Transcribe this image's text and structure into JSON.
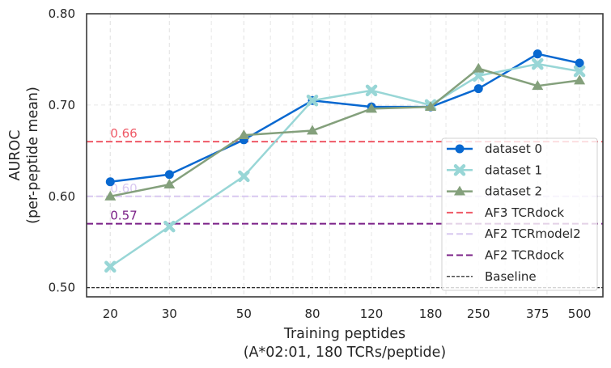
{
  "chart_data": {
    "type": "line",
    "title": "",
    "xlabel": "Training peptides",
    "xlabel_line2": "(A*02:01, 180 TCRs/peptide)",
    "ylabel": "AUROC",
    "ylabel_line2": "(per-peptide mean)",
    "xscale": "log",
    "x": [
      20,
      30,
      50,
      80,
      120,
      180,
      250,
      375,
      500
    ],
    "x_tick_labels": [
      "20",
      "30",
      "50",
      "80",
      "120",
      "180",
      "250",
      "375",
      "500"
    ],
    "xlim": [
      17,
      587
    ],
    "ylim": [
      0.49,
      0.8
    ],
    "y_ticks": [
      0.5,
      0.6,
      0.7,
      0.8
    ],
    "y_tick_labels": [
      "0.50",
      "0.60",
      "0.70",
      "0.80"
    ],
    "grid": true,
    "legend_position": "lower-right",
    "series": [
      {
        "name": "dataset 0",
        "color": "#0868d0",
        "marker": "circle",
        "values": [
          0.616,
          0.624,
          0.662,
          0.705,
          0.698,
          0.698,
          0.718,
          0.756,
          0.746
        ]
      },
      {
        "name": "dataset 1",
        "color": "#98d6d6",
        "marker": "x",
        "values": [
          0.523,
          0.567,
          0.622,
          0.705,
          0.716,
          0.7,
          0.732,
          0.745,
          0.737
        ]
      },
      {
        "name": "dataset 2",
        "color": "#84a07c",
        "marker": "triangle",
        "values": [
          0.6,
          0.613,
          0.667,
          0.672,
          0.696,
          0.698,
          0.74,
          0.721,
          0.727
        ]
      }
    ],
    "reference_lines": [
      {
        "name": "AF3 TCRdock",
        "value": 0.66,
        "label": "0.66",
        "color": "#ef5a67",
        "style": "dashed"
      },
      {
        "name": "AF2 TCRmodel2",
        "value": 0.6,
        "label": "0.60",
        "color": "#d8c8f0",
        "style": "dashed"
      },
      {
        "name": "AF2 TCRdock",
        "value": 0.57,
        "label": "0.57",
        "color": "#7a1f86",
        "style": "dashed"
      },
      {
        "name": "Baseline",
        "value": 0.5,
        "label": "",
        "color": "#111111",
        "style": "dashed-thin"
      }
    ]
  }
}
